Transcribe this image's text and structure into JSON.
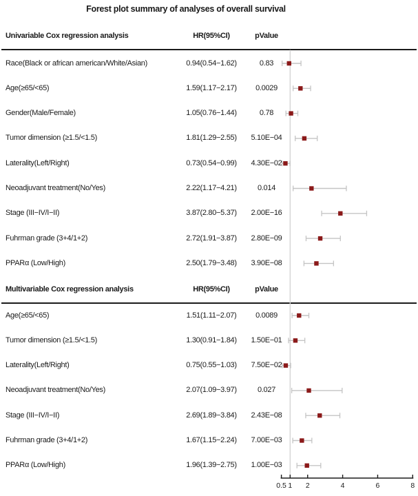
{
  "chart_data": {
    "type": "forest",
    "title": "Forest plot summary of analyses of overall survival",
    "x_axis": {
      "scale": "linear",
      "range": [
        0.5,
        8
      ],
      "tick_values": [
        0.5,
        1,
        2,
        4,
        6,
        8
      ],
      "ticks": [
        "0.5",
        "1",
        "2",
        "4",
        "6",
        "8"
      ],
      "reference_line": 1,
      "grid": false
    },
    "colors": {
      "marker": "#8b1a1a",
      "ci_line": "#c4c4c4",
      "reference_line": "#d2d2d2",
      "rule": "#1a1a1a",
      "axis": "#1a1a1a"
    },
    "sections": [
      {
        "header": "Univariable Cox regression analysis",
        "col_hr_label": "HR(95%CI)",
        "col_p_label": "pValue",
        "rows": [
          {
            "label": "Race(Black or african american/White/Asian)",
            "hr_ci_text": "0.94(0.54−1.62)",
            "p_value": "0.83",
            "hr": 0.94,
            "ci_low": 0.54,
            "ci_high": 1.62
          },
          {
            "label": "Age(≥65/<65)",
            "hr_ci_text": "1.59(1.17−2.17)",
            "p_value": "0.0029",
            "hr": 1.59,
            "ci_low": 1.17,
            "ci_high": 2.17
          },
          {
            "label": "Gender(Male/Female)",
            "hr_ci_text": "1.05(0.76−1.44)",
            "p_value": "0.78",
            "hr": 1.05,
            "ci_low": 0.76,
            "ci_high": 1.44
          },
          {
            "label": "Tumor dimension (≥1.5/<1.5)",
            "hr_ci_text": "1.81(1.29−2.55)",
            "p_value": "5.10E−04",
            "hr": 1.81,
            "ci_low": 1.29,
            "ci_high": 2.55
          },
          {
            "label": "Laterality(Left/Right)",
            "hr_ci_text": "0.73(0.54−0.99)",
            "p_value": "4.30E−02",
            "hr": 0.73,
            "ci_low": 0.54,
            "ci_high": 0.99
          },
          {
            "label": "Neoadjuvant treatment(No/Yes)",
            "hr_ci_text": "2.22(1.17−4.21)",
            "p_value": "0.014",
            "hr": 2.22,
            "ci_low": 1.17,
            "ci_high": 4.21
          },
          {
            "label": "Stage (III−IV/I−II)",
            "hr_ci_text": "3.87(2.80−5.37)",
            "p_value": "2.00E−16",
            "hr": 3.87,
            "ci_low": 2.8,
            "ci_high": 5.37
          },
          {
            "label": "Fuhrman grade (3+4/1+2)",
            "hr_ci_text": "2.72(1.91−3.87)",
            "p_value": "2.80E−09",
            "hr": 2.72,
            "ci_low": 1.91,
            "ci_high": 3.87
          },
          {
            "label": "PPARα (Low/High)",
            "hr_ci_text": "2.50(1.79−3.48)",
            "p_value": "3.90E−08",
            "hr": 2.5,
            "ci_low": 1.79,
            "ci_high": 3.48
          }
        ]
      },
      {
        "header": "Multivariable Cox regression analysis",
        "col_hr_label": "HR(95%CI)",
        "col_p_label": "pValue",
        "rows": [
          {
            "label": "Age(≥65/<65)",
            "hr_ci_text": "1.51(1.11−2.07)",
            "p_value": "0.0089",
            "hr": 1.51,
            "ci_low": 1.11,
            "ci_high": 2.07
          },
          {
            "label": "Tumor dimension (≥1.5/<1.5)",
            "hr_ci_text": "1.30(0.91−1.84)",
            "p_value": "1.50E−01",
            "hr": 1.3,
            "ci_low": 0.91,
            "ci_high": 1.84
          },
          {
            "label": "Laterality(Left/Right)",
            "hr_ci_text": "0.75(0.55−1.03)",
            "p_value": "7.50E−02",
            "hr": 0.75,
            "ci_low": 0.55,
            "ci_high": 1.03
          },
          {
            "label": "Neoadjuvant treatment(No/Yes)",
            "hr_ci_text": "2.07(1.09−3.97)",
            "p_value": "0.027",
            "hr": 2.07,
            "ci_low": 1.09,
            "ci_high": 3.97
          },
          {
            "label": "Stage (III−IV/I−II)",
            "hr_ci_text": "2.69(1.89−3.84)",
            "p_value": "2.43E−08",
            "hr": 2.69,
            "ci_low": 1.89,
            "ci_high": 3.84
          },
          {
            "label": "Fuhrman grade (3+4/1+2)",
            "hr_ci_text": "1.67(1.15−2.24)",
            "p_value": "7.00E−03",
            "hr": 1.67,
            "ci_low": 1.15,
            "ci_high": 2.24
          },
          {
            "label": "PPARα (Low/High)",
            "hr_ci_text": "1.96(1.39−2.75)",
            "p_value": "1.00E−03",
            "hr": 1.96,
            "ci_low": 1.39,
            "ci_high": 2.75
          }
        ]
      }
    ]
  }
}
